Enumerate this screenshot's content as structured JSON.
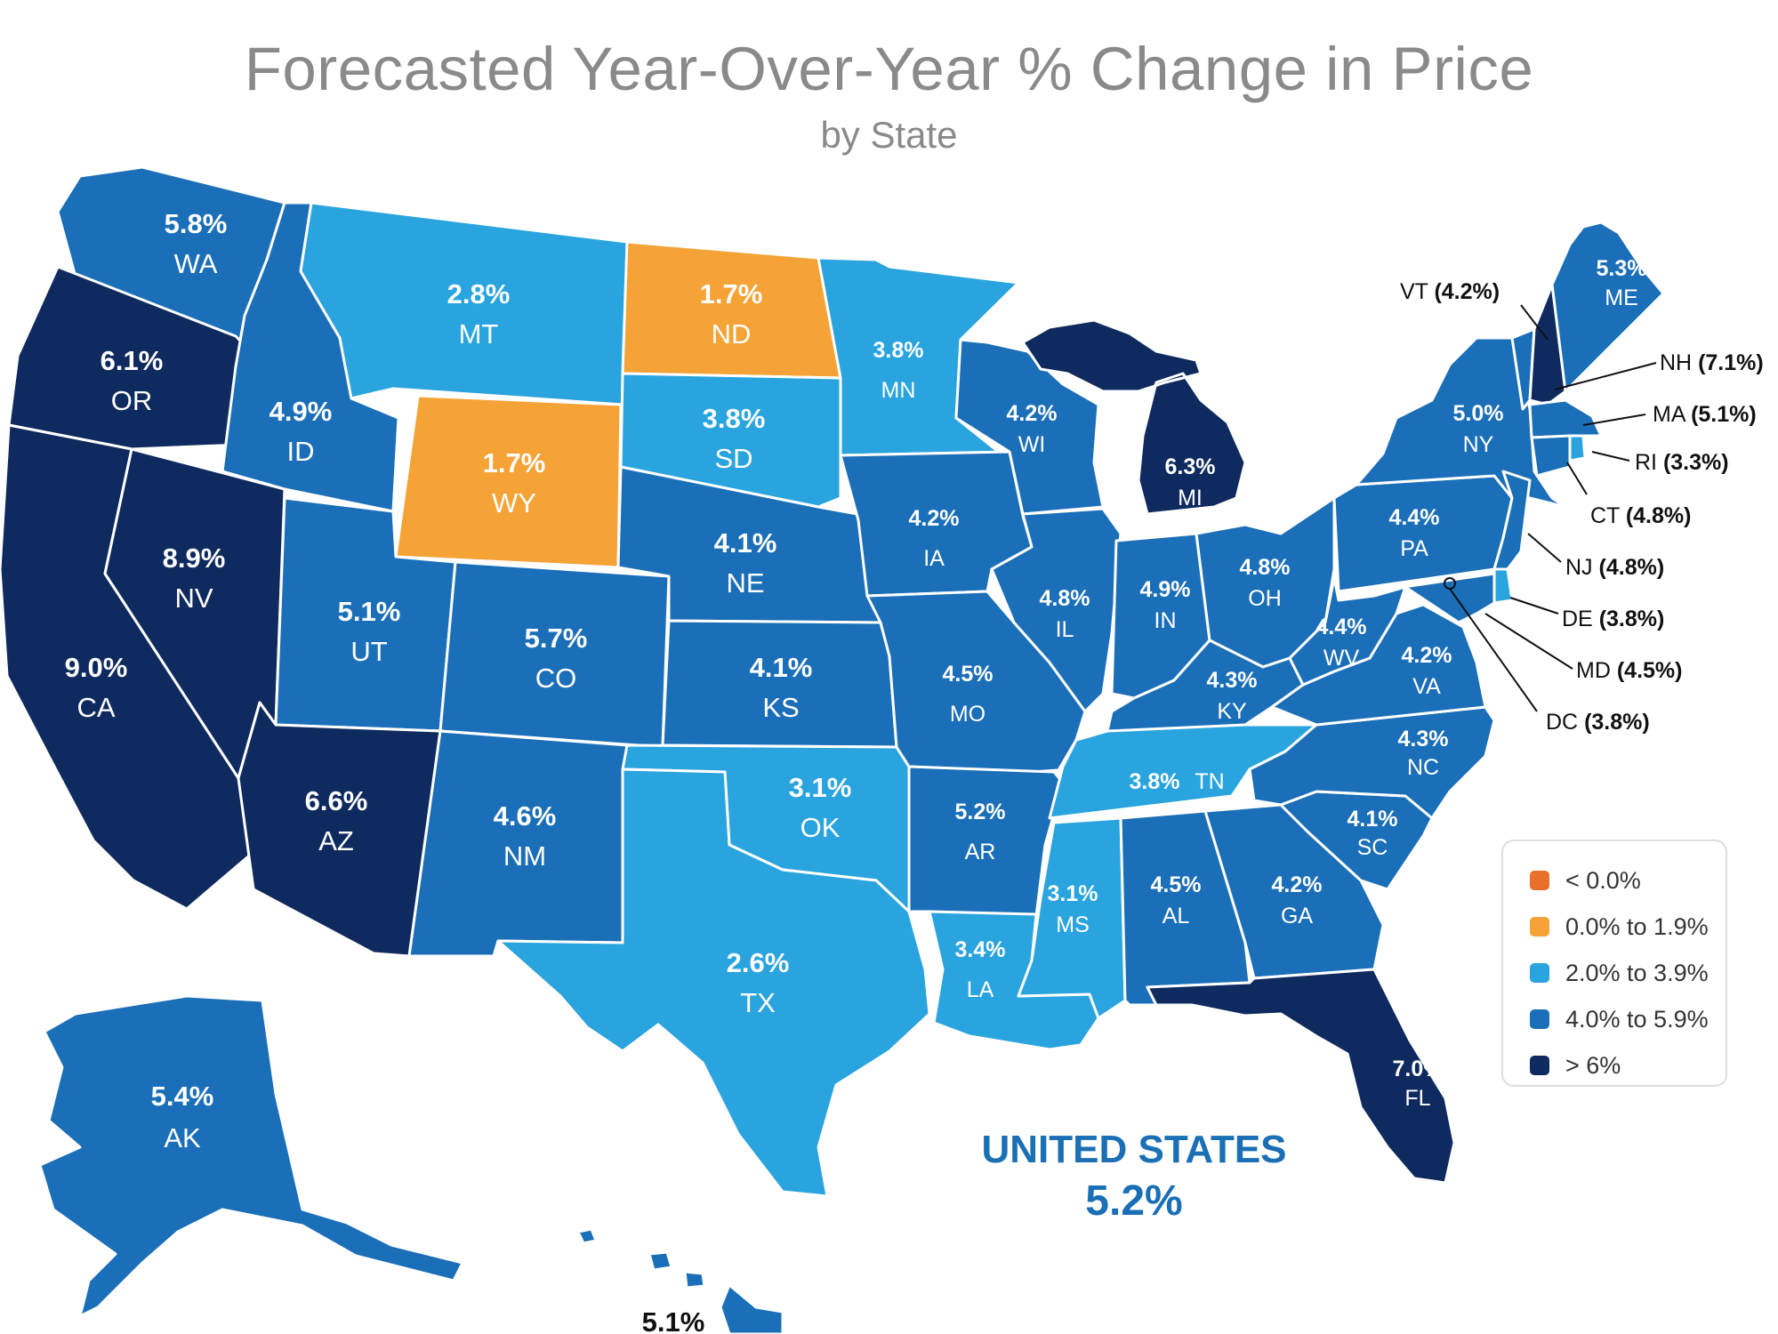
{
  "title": "Forecasted Year-Over-Year % Change in Price",
  "subtitle": "by State",
  "colors": {
    "lt0": "#e8702a",
    "c0_19": "#f5a236",
    "c20_39": "#29a4de",
    "c40_59": "#1b6fb8",
    "gt6": "#0f2a5e"
  },
  "states": {
    "WA": {
      "value": "5.8%",
      "abbr": "WA"
    },
    "OR": {
      "value": "6.1%",
      "abbr": "OR"
    },
    "CA": {
      "value": "9.0%",
      "abbr": "CA"
    },
    "NV": {
      "value": "8.9%",
      "abbr": "NV"
    },
    "ID": {
      "value": "4.9%",
      "abbr": "ID"
    },
    "MT": {
      "value": "2.8%",
      "abbr": "MT"
    },
    "WY": {
      "value": "1.7%",
      "abbr": "WY"
    },
    "UT": {
      "value": "5.1%",
      "abbr": "UT"
    },
    "AZ": {
      "value": "6.6%",
      "abbr": "AZ"
    },
    "CO": {
      "value": "5.7%",
      "abbr": "CO"
    },
    "NM": {
      "value": "4.6%",
      "abbr": "NM"
    },
    "ND": {
      "value": "1.7%",
      "abbr": "ND"
    },
    "SD": {
      "value": "3.8%",
      "abbr": "SD"
    },
    "NE": {
      "value": "4.1%",
      "abbr": "NE"
    },
    "KS": {
      "value": "4.1%",
      "abbr": "KS"
    },
    "OK": {
      "value": "3.1%",
      "abbr": "OK"
    },
    "TX": {
      "value": "2.6%",
      "abbr": "TX"
    },
    "MN": {
      "value": "3.8%",
      "abbr": "MN"
    },
    "IA": {
      "value": "4.2%",
      "abbr": "IA"
    },
    "MO": {
      "value": "4.5%",
      "abbr": "MO"
    },
    "AR": {
      "value": "5.2%",
      "abbr": "AR"
    },
    "LA": {
      "value": "3.4%",
      "abbr": "LA"
    },
    "WI": {
      "value": "4.2%",
      "abbr": "WI"
    },
    "IL": {
      "value": "4.8%",
      "abbr": "IL"
    },
    "MI": {
      "value": "6.3%",
      "abbr": "MI"
    },
    "IN": {
      "value": "4.9%",
      "abbr": "IN"
    },
    "OH": {
      "value": "4.8%",
      "abbr": "OH"
    },
    "KY": {
      "value": "4.3%",
      "abbr": "KY"
    },
    "TN": {
      "value": "3.8%",
      "abbr": "TN"
    },
    "MS": {
      "value": "3.1%",
      "abbr": "MS"
    },
    "AL": {
      "value": "4.5%",
      "abbr": "AL"
    },
    "GA": {
      "value": "4.2%",
      "abbr": "GA"
    },
    "FL": {
      "value": "7.0%",
      "abbr": "FL"
    },
    "SC": {
      "value": "4.1%",
      "abbr": "SC"
    },
    "NC": {
      "value": "4.3%",
      "abbr": "NC"
    },
    "VA": {
      "value": "4.2%",
      "abbr": "VA"
    },
    "WV": {
      "value": "4.4%",
      "abbr": "WV"
    },
    "PA": {
      "value": "4.4%",
      "abbr": "PA"
    },
    "NY": {
      "value": "5.0%",
      "abbr": "NY"
    },
    "ME": {
      "value": "5.3%",
      "abbr": "ME"
    },
    "AK": {
      "value": "5.4%",
      "abbr": "AK"
    },
    "HI": {
      "value": "5.1%"
    }
  },
  "callouts": {
    "VT": {
      "abbr": "VT",
      "value": "(4.2%)"
    },
    "NH": {
      "abbr": "NH",
      "value": "(7.1%)"
    },
    "MA": {
      "abbr": "MA",
      "value": "(5.1%)"
    },
    "RI": {
      "abbr": "RI",
      "value": "(3.3%)"
    },
    "CT": {
      "abbr": "CT",
      "value": "(4.8%)"
    },
    "NJ": {
      "abbr": "NJ",
      "value": "(4.8%)"
    },
    "DE": {
      "abbr": "DE",
      "value": "(3.8%)"
    },
    "MD": {
      "abbr": "MD",
      "value": "(4.5%)"
    },
    "DC": {
      "abbr": "DC",
      "value": "(3.8%)"
    }
  },
  "legend": [
    {
      "label": "< 0.0%",
      "color": "#e8702a"
    },
    {
      "label": "0.0% to 1.9%",
      "color": "#f5a236"
    },
    {
      "label": "2.0% to 3.9%",
      "color": "#29a4de"
    },
    {
      "label": "4.0% to 5.9%",
      "color": "#1b6fb8"
    },
    {
      "label": "> 6%",
      "color": "#0f2a5e"
    }
  ],
  "us_total": {
    "name": "UNITED STATES",
    "value": "5.2%"
  }
}
